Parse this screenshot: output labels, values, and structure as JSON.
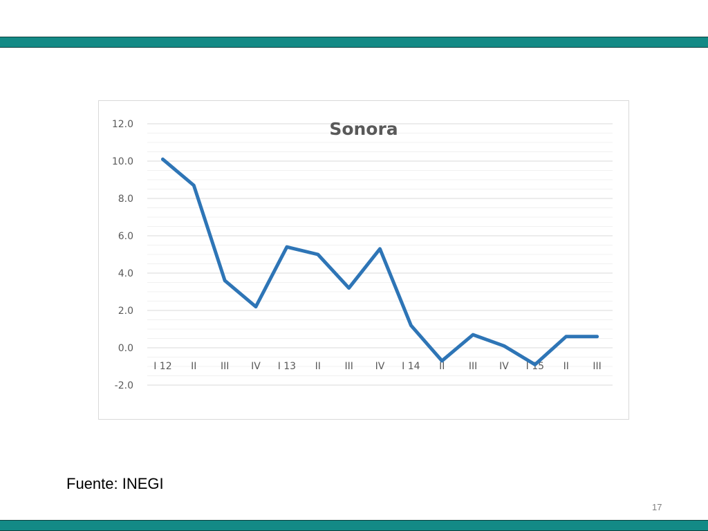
{
  "slide": {
    "source": "Fuente: INEGI",
    "page_number": "17",
    "band_color": "#138a86"
  },
  "chart_data": {
    "type": "line",
    "title": "Sonora",
    "xlabel": "",
    "ylabel": "",
    "categories": [
      "I 12",
      "II",
      "III",
      "IV",
      "I 13",
      "II",
      "III",
      "IV",
      "I 14",
      "II",
      "III",
      "IV",
      "I 15",
      "II",
      "III"
    ],
    "series": [
      {
        "values": [
          10.1,
          8.7,
          3.6,
          2.2,
          5.4,
          5.0,
          3.2,
          5.3,
          1.2,
          -0.7,
          0.7,
          0.1,
          -0.9,
          0.6,
          0.6
        ],
        "color": "#2e75b6"
      }
    ],
    "ylim": [
      -2.0,
      12.0
    ],
    "yticks": [
      12.0,
      10.0,
      8.0,
      6.0,
      4.0,
      2.0,
      0.0,
      -2.0
    ],
    "ytick_labels": [
      "12.0",
      "10.0",
      "8.0",
      "6.0",
      "4.0",
      "2.0",
      "0.0",
      "-2.0"
    ],
    "grid": true,
    "legend": "none"
  }
}
